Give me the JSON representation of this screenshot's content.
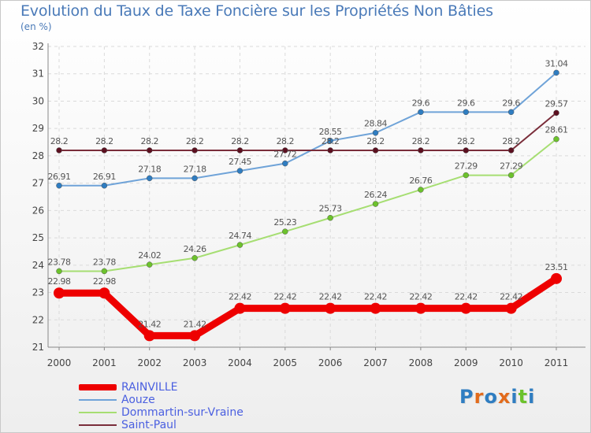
{
  "chart_data": {
    "type": "line",
    "title": "Evolution du Taux de Taxe Foncière sur les Propriétés Non Bâties",
    "subtitle": "(en %)",
    "categories": [
      "2000",
      "2001",
      "2002",
      "2003",
      "2004",
      "2005",
      "2006",
      "2007",
      "2008",
      "2009",
      "2010",
      "2011"
    ],
    "ylim": [
      21,
      32
    ],
    "yticks": [
      21,
      22,
      23,
      24,
      25,
      26,
      27,
      28,
      29,
      30,
      31,
      32
    ],
    "grid": true,
    "legend_position": "bottom-left",
    "series": [
      {
        "name": "RAINVILLE",
        "color": "#ee0000",
        "emphasis": true,
        "values": [
          22.98,
          22.98,
          21.42,
          21.42,
          22.42,
          22.42,
          22.42,
          22.42,
          22.42,
          22.42,
          22.42,
          23.51
        ],
        "labels": [
          "22.98",
          "22.98",
          "21.42",
          "21.42",
          "22.42",
          "22.42",
          "22.42",
          "22.42",
          "22.42",
          "22.42",
          "22.42",
          "23.51"
        ]
      },
      {
        "name": "Aouze",
        "color": "#6fa3d8",
        "marker": "#2f7dc1",
        "values": [
          26.91,
          26.91,
          27.18,
          27.18,
          27.45,
          27.72,
          28.55,
          28.84,
          29.6,
          29.6,
          29.6,
          31.04
        ],
        "labels": [
          "26.91",
          "26.91",
          "27.18",
          "27.18",
          "27.45",
          "27.72",
          "28.55",
          "28.84",
          "29.6",
          "29.6",
          "29.6",
          "31.04"
        ]
      },
      {
        "name": "Dommartin-sur-Vraine",
        "color": "#a6de72",
        "marker": "#6cc22c",
        "values": [
          23.78,
          23.78,
          24.02,
          24.26,
          24.74,
          25.23,
          25.73,
          26.24,
          26.76,
          27.29,
          27.29,
          28.61
        ],
        "labels": [
          "23.78",
          "23.78",
          "24.02",
          "24.26",
          "24.74",
          "25.23",
          "25.73",
          "26.24",
          "26.76",
          "27.29",
          "27.29",
          "28.61"
        ]
      },
      {
        "name": "Saint-Paul",
        "color": "#7a2d3a",
        "marker": "#5c1020",
        "values": [
          28.2,
          28.2,
          28.2,
          28.2,
          28.2,
          28.2,
          28.2,
          28.2,
          28.2,
          28.2,
          28.2,
          29.57
        ],
        "labels": [
          "28.2",
          "28.2",
          "28.2",
          "28.2",
          "28.2",
          "28.2",
          "28.2",
          "28.2",
          "28.2",
          "28.2",
          "28.2",
          "29.57"
        ]
      }
    ]
  },
  "brand": {
    "text": "Proxiti",
    "letter_colors": [
      "#2f7dc1",
      "#e26b1c",
      "#2f7dc1",
      "#e26b1c",
      "#2f7dc1",
      "#6cc22c",
      "#2f7dc1"
    ]
  }
}
